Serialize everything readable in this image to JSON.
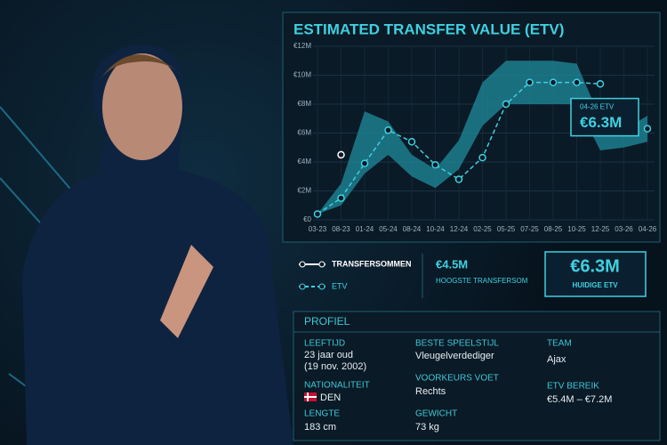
{
  "chart_data": {
    "type": "line",
    "title": "ESTIMATED TRANSFER VALUE (ETV)",
    "categories": [
      "03-23",
      "08-23",
      "01-24",
      "05-24",
      "08-24",
      "10-24",
      "12-24",
      "02-25",
      "05-25",
      "07-25",
      "08-25",
      "10-25",
      "12-25",
      "03-26",
      "04-26"
    ],
    "series": [
      {
        "name": "TRANSFERSOMMEN",
        "color": "#ffffff",
        "values": [
          null,
          4.5,
          null,
          null,
          null,
          null,
          null,
          null,
          null,
          null,
          null,
          null,
          null,
          null,
          null
        ]
      },
      {
        "name": "ETV",
        "color": "#3fd0e0",
        "values": [
          0.4,
          1.5,
          3.9,
          6.2,
          5.4,
          3.8,
          2.8,
          4.3,
          8.0,
          9.5,
          9.5,
          9.5,
          9.4,
          null,
          6.3
        ],
        "value_labels": [
          null,
          null,
          null,
          null,
          null,
          null,
          null,
          null,
          null,
          null,
          null,
          null,
          null,
          null,
          "€6.3M"
        ]
      }
    ],
    "range": {
      "color": "#1d7f8f",
      "lower": [
        0.4,
        1.0,
        3.2,
        4.5,
        3.0,
        2.2,
        3.5,
        6.5,
        8.0,
        8.0,
        8.0,
        8.0,
        4.8,
        5.0,
        5.4
      ],
      "upper": [
        0.4,
        2.5,
        7.5,
        6.8,
        4.5,
        3.5,
        5.5,
        9.5,
        11.0,
        11.0,
        11.0,
        10.8,
        7.0,
        6.2,
        7.2
      ]
    },
    "annotation": "04-26 ETV",
    "ylim": [
      0,
      12
    ],
    "yticks": [
      {
        "value": 0,
        "label": "€0"
      },
      {
        "value": 2,
        "label": "€2M"
      },
      {
        "value": 4,
        "label": "€4M"
      },
      {
        "value": 6,
        "label": "€6M"
      },
      {
        "value": 8,
        "label": "€8M"
      },
      {
        "value": 10,
        "label": "€10M"
      },
      {
        "value": 12,
        "label": "€12M"
      }
    ],
    "grid": true
  },
  "summary": {
    "highest_transfer": {
      "value": "€4.5M",
      "label": "HOOGSTE TRANSFERSOM"
    },
    "current_etv": {
      "value": "€6.3M",
      "label": "HUIDIGE ETV"
    }
  },
  "profile": {
    "title": "PROFIEL",
    "age": {
      "label": "LEEFTIJD",
      "value": "23 jaar oud",
      "sub": "(19 nov. 2002)"
    },
    "nationality": {
      "label": "NATIONALITEIT",
      "value": "DEN"
    },
    "height": {
      "label": "LENGTE",
      "value": "183 cm"
    },
    "style": {
      "label": "BESTE SPEELSTIJL",
      "value": "Vleugelverdediger"
    },
    "foot": {
      "label": "VOORKEURS VOET",
      "value": "Rechts"
    },
    "weight": {
      "label": "GEWICHT",
      "value": "73 kg"
    },
    "team": {
      "label": "TEAM",
      "value": "Ajax"
    },
    "range": {
      "label": "ETV BEREIK",
      "value": "€5.4M – €7.2M"
    }
  }
}
